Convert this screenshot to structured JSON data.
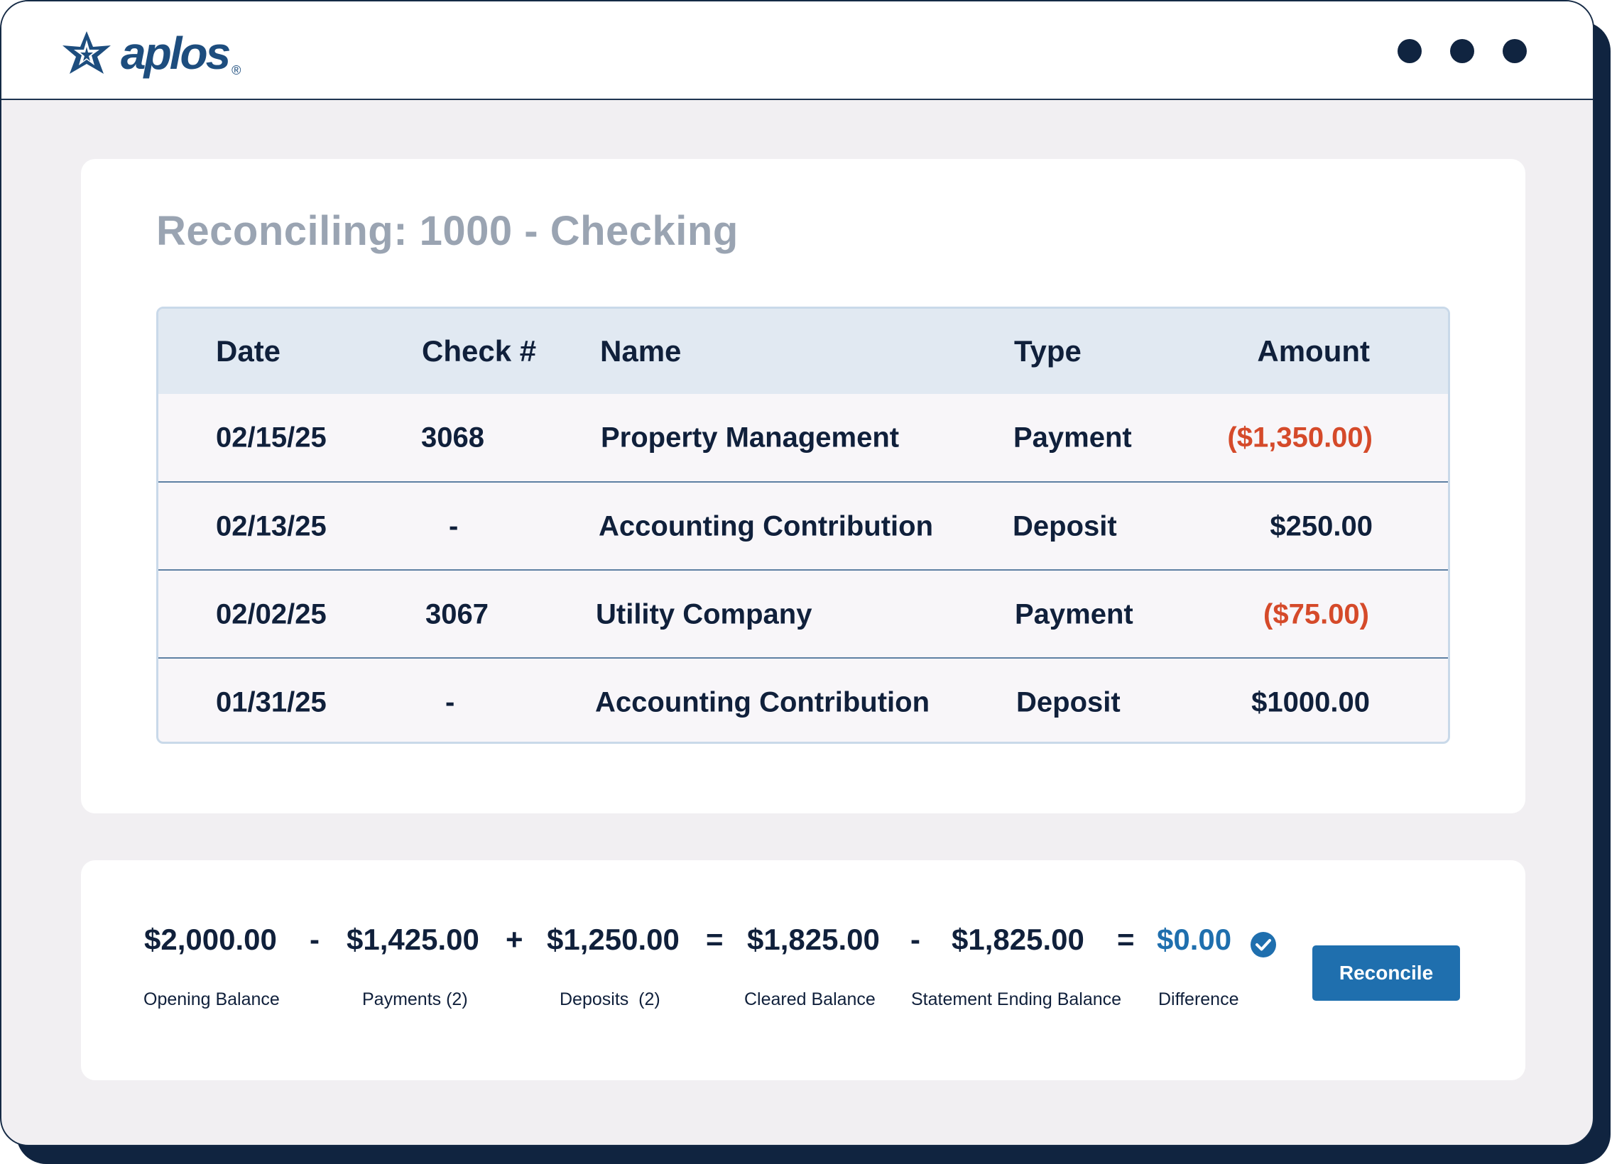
{
  "app": {
    "logo_text": "aplos",
    "logo_registered": "®"
  },
  "page": {
    "title": "Reconciling: 1000 - Checking"
  },
  "table": {
    "headers": [
      "Date",
      "Check #",
      "Name",
      "Type",
      "Amount"
    ],
    "rows": [
      {
        "date": "02/15/25",
        "check": "3068",
        "name": "Property Management",
        "type": "Payment",
        "amount": "($1,350.00)",
        "negative": true
      },
      {
        "date": "02/13/25",
        "check": "-",
        "name": "Accounting Contribution",
        "type": "Deposit",
        "amount": "$250.00",
        "negative": false
      },
      {
        "date": "02/02/25",
        "check": "3067",
        "name": "Utility Company",
        "type": "Payment",
        "amount": "($75.00)",
        "negative": true
      },
      {
        "date": "01/31/25",
        "check": "-",
        "name": "Accounting Contribution",
        "type": "Deposit",
        "amount": "$1000.00",
        "negative": false
      }
    ]
  },
  "summary": {
    "opening_balance": {
      "value": "$2,000.00",
      "label": "Opening Balance"
    },
    "op1": "-",
    "payments": {
      "value": "$1,425.00",
      "label": "Payments (2)"
    },
    "op2": "+",
    "deposits": {
      "value": "$1,250.00",
      "label": "Deposits  (2)"
    },
    "op3": "=",
    "cleared_balance": {
      "value": "$1,825.00",
      "label": "Cleared Balance"
    },
    "op4": "-",
    "statement_ending_balance": {
      "value": "$1,825.00",
      "label": "Statement Ending Balance"
    },
    "op5": "=",
    "difference": {
      "value": "$0.00",
      "label": "Difference"
    },
    "reconcile_label": "Reconcile"
  },
  "colors": {
    "accent": "#1f6fae",
    "negative": "#d54a2a",
    "text": "#10203b",
    "title": "#9aa4b2",
    "header_bg": "#e1e9f2",
    "window_bg": "#f1eff2"
  },
  "icons": {
    "logo": "aplos-star-logo-icon",
    "window_menu": "window-dots-icon",
    "difference_status": "check-circle-icon"
  }
}
